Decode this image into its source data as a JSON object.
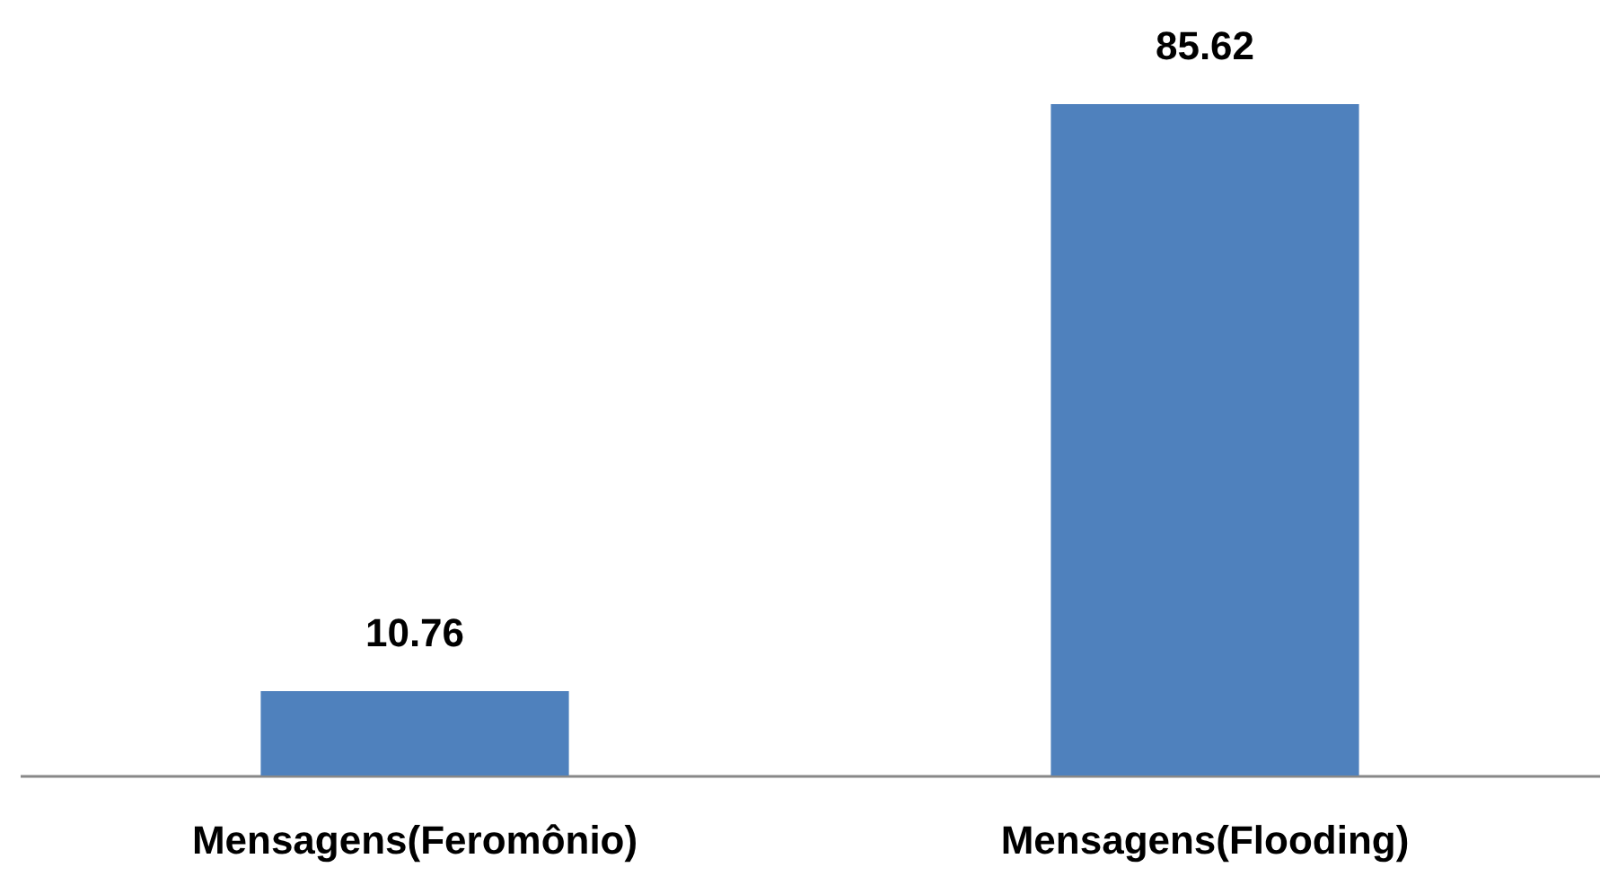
{
  "chart_data": {
    "type": "bar",
    "categories": [
      "Mensagens(Feromônio)",
      "Mensagens(Flooding)"
    ],
    "values": [
      10.76,
      85.62
    ],
    "color": "#4f81bd",
    "data_labels": true,
    "grid": false
  }
}
